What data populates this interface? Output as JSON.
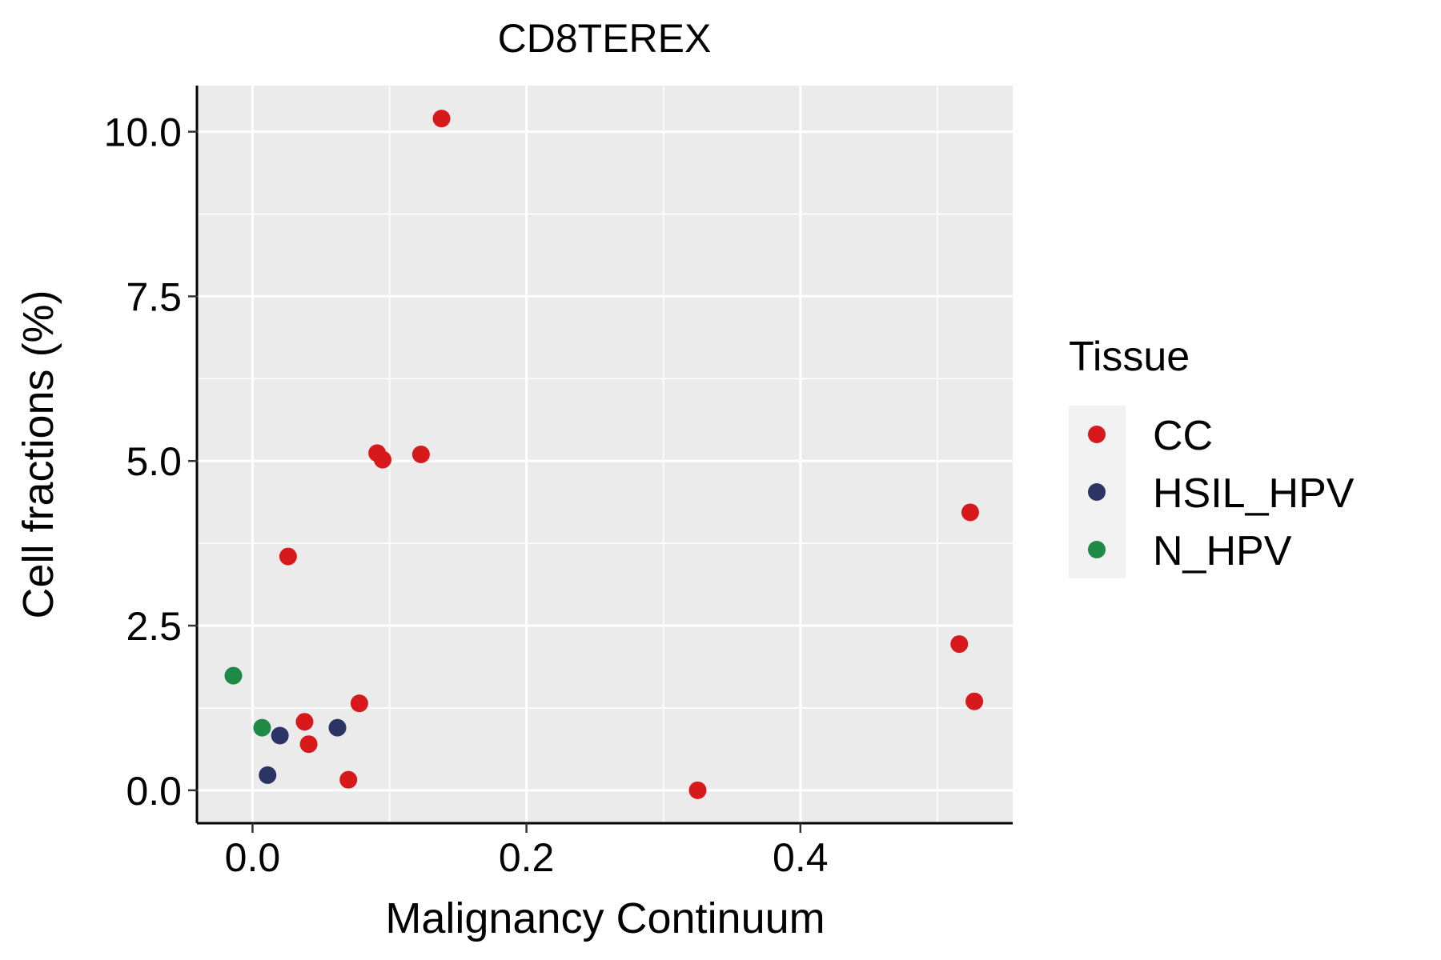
{
  "chart_data": {
    "type": "scatter",
    "title": "CD8TEREX",
    "xlabel": "Malignancy Continuum",
    "ylabel": "Cell fractions (%)",
    "xlim": [
      -0.04,
      0.555
    ],
    "ylim": [
      -0.5,
      10.7
    ],
    "x_ticks": [
      0.0,
      0.2,
      0.4
    ],
    "x_tick_labels": [
      "0.0",
      "0.2",
      "0.4"
    ],
    "y_ticks": [
      0.0,
      2.5,
      5.0,
      7.5,
      10.0
    ],
    "y_tick_labels": [
      "0.0",
      "2.5",
      "5.0",
      "7.5",
      "10.0"
    ],
    "grid": true,
    "legend": {
      "title": "Tissue",
      "position": "right",
      "entries": [
        "CC",
        "HSIL_HPV",
        "N_HPV"
      ]
    },
    "colors": {
      "CC": "#D7191C",
      "HSIL_HPV": "#2C3466",
      "N_HPV": "#1E8A45"
    },
    "series": [
      {
        "name": "CC",
        "points": [
          {
            "x": 0.138,
            "y": 10.2
          },
          {
            "x": 0.091,
            "y": 5.12
          },
          {
            "x": 0.095,
            "y": 5.02
          },
          {
            "x": 0.123,
            "y": 5.1
          },
          {
            "x": 0.026,
            "y": 3.55
          },
          {
            "x": 0.078,
            "y": 1.32
          },
          {
            "x": 0.038,
            "y": 1.04
          },
          {
            "x": 0.041,
            "y": 0.7
          },
          {
            "x": 0.07,
            "y": 0.16
          },
          {
            "x": 0.325,
            "y": 0.0
          },
          {
            "x": 0.524,
            "y": 4.22
          },
          {
            "x": 0.516,
            "y": 2.22
          },
          {
            "x": 0.527,
            "y": 1.35
          }
        ]
      },
      {
        "name": "HSIL_HPV",
        "points": [
          {
            "x": 0.062,
            "y": 0.95
          },
          {
            "x": 0.02,
            "y": 0.83
          },
          {
            "x": 0.011,
            "y": 0.23
          }
        ]
      },
      {
        "name": "N_HPV",
        "points": [
          {
            "x": -0.014,
            "y": 1.74
          },
          {
            "x": 0.007,
            "y": 0.95
          }
        ]
      }
    ]
  }
}
